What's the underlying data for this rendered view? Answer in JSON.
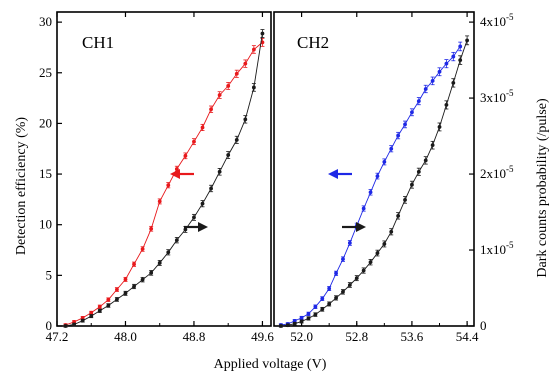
{
  "figure": {
    "xlabel": "Applied voltage (V)",
    "ylabel_left": "Detection efficiency (%)",
    "ylabel_right": "Dark counts probability (/pulse)"
  },
  "chart_data": [
    {
      "type": "line",
      "panel_label": "CH1",
      "xlim": [
        47.2,
        49.7
      ],
      "xticks": [
        "47.2",
        "48.0",
        "48.8",
        "49.6"
      ],
      "ylim_left": [
        0,
        31
      ],
      "yticks_left": [
        "0",
        "5",
        "10",
        "15",
        "20",
        "25",
        "30"
      ],
      "ylim_right": [
        0,
        4.133e-05
      ],
      "yticks_right": [
        "0",
        "1x10-5",
        "2x10-5",
        "3x10-5",
        "4x10-5"
      ],
      "series": [
        {
          "axis": "left",
          "color": "#e8191c",
          "arrow": "left",
          "x": [
            47.3,
            47.4,
            47.5,
            47.6,
            47.7,
            47.8,
            47.9,
            48.0,
            48.1,
            48.2,
            48.3,
            48.4,
            48.5,
            48.6,
            48.7,
            48.8,
            48.9,
            49.0,
            49.1,
            49.2,
            49.3,
            49.4,
            49.5,
            49.6
          ],
          "y": [
            0.1,
            0.4,
            0.8,
            1.3,
            1.9,
            2.6,
            3.6,
            4.6,
            6.1,
            7.6,
            9.6,
            12.3,
            13.9,
            15.5,
            16.8,
            18.2,
            19.6,
            21.4,
            22.8,
            23.7,
            24.9,
            25.9,
            27.3,
            28.0
          ]
        },
        {
          "axis": "right",
          "color": "#1a1a1a",
          "arrow": "right",
          "x": [
            47.3,
            47.4,
            47.5,
            47.6,
            47.7,
            47.8,
            47.9,
            48.0,
            48.1,
            48.2,
            48.3,
            48.4,
            48.5,
            48.6,
            48.7,
            48.8,
            48.9,
            49.0,
            49.1,
            49.2,
            49.3,
            49.4,
            49.5,
            49.6
          ],
          "y": [
            0.0,
            2e-07,
            7e-07,
            1.3e-06,
            2e-06,
            2.7e-06,
            3.5e-06,
            4.3e-06,
            5.2e-06,
            6.1e-06,
            7e-06,
            8.3e-06,
            9.7e-06,
            1.13e-05,
            1.27e-05,
            1.43e-05,
            1.61e-05,
            1.81e-05,
            2.03e-05,
            2.25e-05,
            2.45e-05,
            2.72e-05,
            3.14e-05,
            3.85e-05
          ]
        }
      ]
    },
    {
      "type": "line",
      "panel_label": "CH2",
      "xlim": [
        51.6,
        54.5
      ],
      "xticks": [
        "52.0",
        "52.8",
        "53.6",
        "54.4"
      ],
      "ylim_left": [
        0,
        31
      ],
      "ylim_right": [
        0,
        4.133e-05
      ],
      "series": [
        {
          "axis": "left",
          "color": "#1e28e6",
          "arrow": "left",
          "x": [
            51.7,
            51.8,
            51.9,
            52.0,
            52.1,
            52.2,
            52.3,
            52.4,
            52.5,
            52.6,
            52.7,
            52.8,
            52.9,
            53.0,
            53.1,
            53.2,
            53.3,
            53.4,
            53.5,
            53.6,
            53.7,
            53.8,
            53.9,
            54.0,
            54.1,
            54.2,
            54.3
          ],
          "y": [
            0.1,
            0.2,
            0.5,
            0.8,
            1.2,
            1.9,
            2.7,
            3.7,
            5.2,
            6.6,
            8.2,
            9.9,
            11.6,
            13.2,
            14.8,
            16.2,
            17.5,
            18.8,
            19.9,
            21.1,
            22.2,
            23.4,
            24.2,
            25.1,
            25.9,
            26.6,
            27.6
          ]
        },
        {
          "axis": "right",
          "color": "#1a1a1a",
          "arrow": "right",
          "x": [
            51.7,
            51.8,
            51.9,
            52.0,
            52.1,
            52.2,
            52.3,
            52.4,
            52.5,
            52.6,
            52.7,
            52.8,
            52.9,
            53.0,
            53.1,
            53.2,
            53.3,
            53.4,
            53.5,
            53.6,
            53.7,
            53.8,
            53.9,
            54.0,
            54.1,
            54.2,
            54.3,
            54.4
          ],
          "y": [
            0.0,
            1e-07,
            3e-07,
            6e-07,
            1e-06,
            1.5e-06,
            2.2e-06,
            2.9e-06,
            3.7e-06,
            4.5e-06,
            5.4e-06,
            6.3e-06,
            7.3e-06,
            8.4e-06,
            9.6e-06,
            1.08e-05,
            1.24e-05,
            1.45e-05,
            1.66e-05,
            1.86e-05,
            2.03e-05,
            2.18e-05,
            2.38e-05,
            2.62e-05,
            2.91e-05,
            3.2e-05,
            3.5e-05,
            3.76e-05
          ]
        }
      ]
    }
  ]
}
